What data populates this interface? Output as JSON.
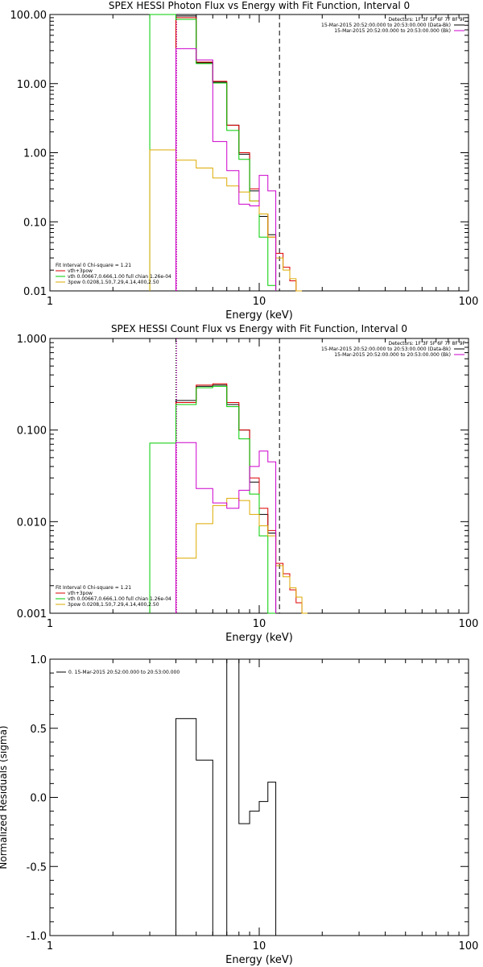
{
  "chart_data": [
    {
      "type": "line",
      "title": "SPEX HESSI Photon Flux vs Energy with Fit Function, Interval 0",
      "xlabel": "Energy (keV)",
      "ylabel": "",
      "xscale": "log",
      "yscale": "log",
      "xlim": [
        1,
        100
      ],
      "ylim": [
        0.01,
        100
      ],
      "x_ticks": [
        {
          "v": 1,
          "label": "1"
        },
        {
          "v": 10,
          "label": "10"
        },
        {
          "v": 100,
          "label": "100"
        }
      ],
      "y_ticks": [
        {
          "v": 100,
          "label": "100.00"
        },
        {
          "v": 10,
          "label": "10.00"
        },
        {
          "v": 1,
          "label": "1.00"
        },
        {
          "v": 0.1,
          "label": "0.10"
        },
        {
          "v": 0.01,
          "label": "0.01"
        }
      ],
      "bin_edges": [
        3,
        4,
        5,
        6,
        7,
        8,
        9,
        10,
        11,
        12,
        13,
        14,
        15,
        16,
        17,
        18
      ],
      "vlines": [
        {
          "x": 4,
          "style": "dotted",
          "color": "#000000"
        },
        {
          "x": 4,
          "style": "dotted",
          "color": "#cc00cc"
        },
        {
          "x": 12.5,
          "style": "dashed",
          "color": "#000000"
        }
      ],
      "detectors_label": "Detectors: 1F 3F 5F 6F 7F 8F 9F",
      "legend_top": [
        {
          "text": "15-Mar-2015 20:52:00.000 to 20:53:00.000 (Data-Bk)",
          "color": "#000000"
        },
        {
          "text": "15-Mar-2015 20:52:00.000 to 20:53:00.000 (Bk)",
          "color": "#cc00cc"
        }
      ],
      "fit_header": "Fit Interval 0  Chi-square = 1.21",
      "legend_fit": [
        {
          "text": "vth+3pow",
          "color": "#dd0000"
        },
        {
          "text": "vth 0.00667,0.666,1.00  full chian 1.26e-04",
          "color": "#00cc00"
        },
        {
          "text": "3pow 0.0208,1.50,7.29,4.14,400,2.50",
          "color": "#ddaa00"
        }
      ],
      "series": [
        {
          "name": "",
          "color": "#000000",
          "values": [
            null,
            95,
            20,
            10.5,
            2.5,
            0.95,
            0.28,
            0.12,
            0.065,
            null,
            null,
            null,
            null,
            null,
            null
          ]
        },
        {
          "name": "vth+3pow",
          "color": "#dd0000",
          "values": [
            null,
            90,
            20.5,
            10.8,
            2.5,
            1.0,
            0.3,
            0.13,
            0.06,
            0.035,
            0.022,
            0.014,
            0.01,
            null,
            null
          ]
        },
        {
          "name": "vth 0.00667,0.666,1.00  full chian 1.26e-04",
          "color": "#00cc00",
          "values": [
            200,
            85,
            19.5,
            10.2,
            2.1,
            0.8,
            0.2,
            0.06,
            0.012,
            null,
            null,
            null,
            null,
            null,
            null
          ]
        },
        {
          "name": "3pow 0.0208,1.50,7.29,4.14,400,2.50",
          "color": "#ddaa00",
          "values": [
            1.1,
            0.78,
            0.6,
            0.43,
            0.33,
            0.27,
            0.2,
            0.13,
            0.06,
            0.03,
            0.02,
            0.015,
            0.01,
            null,
            null
          ]
        },
        {
          "name": "",
          "color": "#cc00cc",
          "values": [
            null,
            32,
            22,
            1.45,
            0.55,
            0.18,
            0.17,
            0.47,
            0.28,
            null,
            null,
            null,
            null,
            null,
            null
          ]
        }
      ]
    },
    {
      "type": "line",
      "title": "SPEX HESSI Count Flux vs Energy with Fit Function, Interval 0",
      "xlabel": "Energy (keV)",
      "ylabel": "",
      "xscale": "log",
      "yscale": "log",
      "xlim": [
        1,
        100
      ],
      "ylim": [
        0.001,
        1
      ],
      "x_ticks": [
        {
          "v": 1,
          "label": "1"
        },
        {
          "v": 10,
          "label": "10"
        },
        {
          "v": 100,
          "label": "100"
        }
      ],
      "y_ticks": [
        {
          "v": 1,
          "label": "1.000"
        },
        {
          "v": 0.1,
          "label": "0.100"
        },
        {
          "v": 0.01,
          "label": "0.010"
        },
        {
          "v": 0.001,
          "label": "0.001"
        }
      ],
      "bin_edges": [
        3,
        4,
        5,
        6,
        7,
        8,
        9,
        10,
        11,
        12,
        13,
        14,
        15,
        16,
        17,
        18
      ],
      "vlines": [
        {
          "x": 4,
          "style": "dotted",
          "color": "#000000"
        },
        {
          "x": 4,
          "style": "dotted",
          "color": "#cc00cc"
        },
        {
          "x": 12.5,
          "style": "dashed",
          "color": "#000000"
        }
      ],
      "detectors_label": "Detectors: 1F 3F 5F 6F 7F 8F 9F",
      "legend_top": [
        {
          "text": "15-Mar-2015 20:52:00.000 to 20:53:00.000 (Data-Bk)",
          "color": "#000000"
        },
        {
          "text": "15-Mar-2015 20:52:00.000 to 20:53:00.000 (Bk)",
          "color": "#cc00cc"
        }
      ],
      "fit_header": "Fit Interval 0  Chi-square = 1.21",
      "legend_fit": [
        {
          "text": "vth+3pow",
          "color": "#dd0000"
        },
        {
          "text": "vth 0.00667,0.666,1.00  full chian 1.26e-04",
          "color": "#00cc00"
        },
        {
          "text": "3pow 0.0208,1.50,7.29,4.14,400,2.50",
          "color": "#ddaa00"
        }
      ],
      "series": [
        {
          "name": "",
          "color": "#000000",
          "values": [
            null,
            0.21,
            0.3,
            0.31,
            0.19,
            0.1,
            0.027,
            0.012,
            0.0075,
            null,
            null,
            null,
            null,
            null,
            null
          ]
        },
        {
          "name": "vth+3pow",
          "color": "#dd0000",
          "values": [
            null,
            0.2,
            0.31,
            0.32,
            0.2,
            0.1,
            0.03,
            0.014,
            0.008,
            0.0035,
            0.0027,
            0.0018,
            0.0013,
            0.001,
            null
          ]
        },
        {
          "name": "vth 0.00667,0.666,1.00  full chian 1.26e-04",
          "color": "#00cc00",
          "values": [
            0.072,
            0.19,
            0.29,
            0.3,
            0.18,
            0.08,
            0.02,
            0.007,
            0.001,
            null,
            null,
            null,
            null,
            null,
            null
          ]
        },
        {
          "name": "3pow 0.0208,1.50,7.29,4.14,400,2.50",
          "color": "#ddaa00",
          "values": [
            null,
            0.004,
            0.0095,
            0.015,
            0.018,
            0.017,
            0.012,
            0.009,
            0.007,
            0.0033,
            0.0025,
            0.0019,
            0.0015,
            0.001,
            null
          ]
        },
        {
          "name": "",
          "color": "#cc00cc",
          "values": [
            null,
            0.073,
            0.023,
            0.016,
            0.014,
            0.022,
            0.04,
            0.059,
            0.045,
            null,
            null,
            null,
            null,
            null,
            null
          ]
        }
      ]
    },
    {
      "type": "line",
      "title": "",
      "xlabel": "Energy (keV)",
      "ylabel": "Normalized Residuals (sigma)",
      "xscale": "log",
      "yscale": "linear",
      "xlim": [
        1,
        100
      ],
      "ylim": [
        -1,
        1
      ],
      "x_ticks": [
        {
          "v": 1,
          "label": "1"
        },
        {
          "v": 10,
          "label": "10"
        },
        {
          "v": 100,
          "label": "100"
        }
      ],
      "y_ticks": [
        {
          "v": 1,
          "label": "1.0"
        },
        {
          "v": 0.5,
          "label": "0.5"
        },
        {
          "v": 0,
          "label": "0.0"
        },
        {
          "v": -0.5,
          "label": "-0.5"
        },
        {
          "v": -1,
          "label": "-1.0"
        }
      ],
      "bin_edges": [
        4,
        5,
        6,
        7,
        8,
        9,
        10,
        11,
        12
      ],
      "legend_top": [
        {
          "text": "0. 15-Mar-2015 20:52:00.000 to 20:53:00.000",
          "color": "#000000"
        }
      ],
      "series": [
        {
          "name": "",
          "color": "#000000",
          "values": [
            0.57,
            0.27,
            -1.0,
            1.0,
            -0.19,
            -0.1,
            -0.03,
            0.11
          ]
        }
      ]
    }
  ]
}
